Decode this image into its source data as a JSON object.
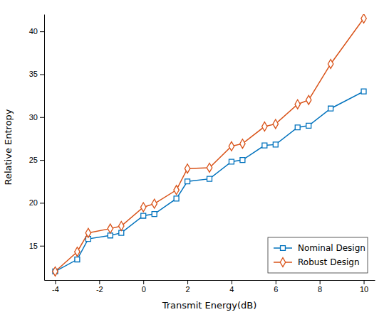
{
  "chart_data": {
    "type": "line",
    "x": [
      -4,
      -3,
      -2.5,
      -1.5,
      -1,
      0,
      0.5,
      1.5,
      2,
      3,
      4,
      4.5,
      5.5,
      6,
      7,
      7.5,
      8.5,
      10
    ],
    "series": [
      {
        "name": "Nominal Design",
        "color": "#0072BD",
        "marker": "square",
        "values": [
          12.0,
          13.4,
          15.8,
          16.2,
          16.5,
          18.5,
          18.7,
          20.5,
          22.5,
          22.8,
          24.8,
          25.0,
          26.7,
          26.8,
          28.8,
          29.0,
          31.0,
          33.0
        ]
      },
      {
        "name": "Robust Design",
        "color": "#D95319",
        "marker": "diamond",
        "values": [
          12.0,
          14.3,
          16.5,
          17.0,
          17.3,
          19.5,
          19.9,
          21.5,
          24.0,
          24.1,
          26.6,
          26.9,
          28.9,
          29.2,
          31.5,
          32.0,
          36.2,
          41.5
        ]
      }
    ],
    "xlabel": "Transmit Energy(dB)",
    "ylabel": "Relative Entropy",
    "xlim": [
      -4.5,
      10.5
    ],
    "ylim": [
      11,
      42
    ],
    "xticks": [
      -4,
      -2,
      0,
      2,
      4,
      6,
      8,
      10
    ],
    "yticks": [
      15,
      20,
      25,
      30,
      35,
      40
    ],
    "legend": "lower right",
    "grid": false
  }
}
